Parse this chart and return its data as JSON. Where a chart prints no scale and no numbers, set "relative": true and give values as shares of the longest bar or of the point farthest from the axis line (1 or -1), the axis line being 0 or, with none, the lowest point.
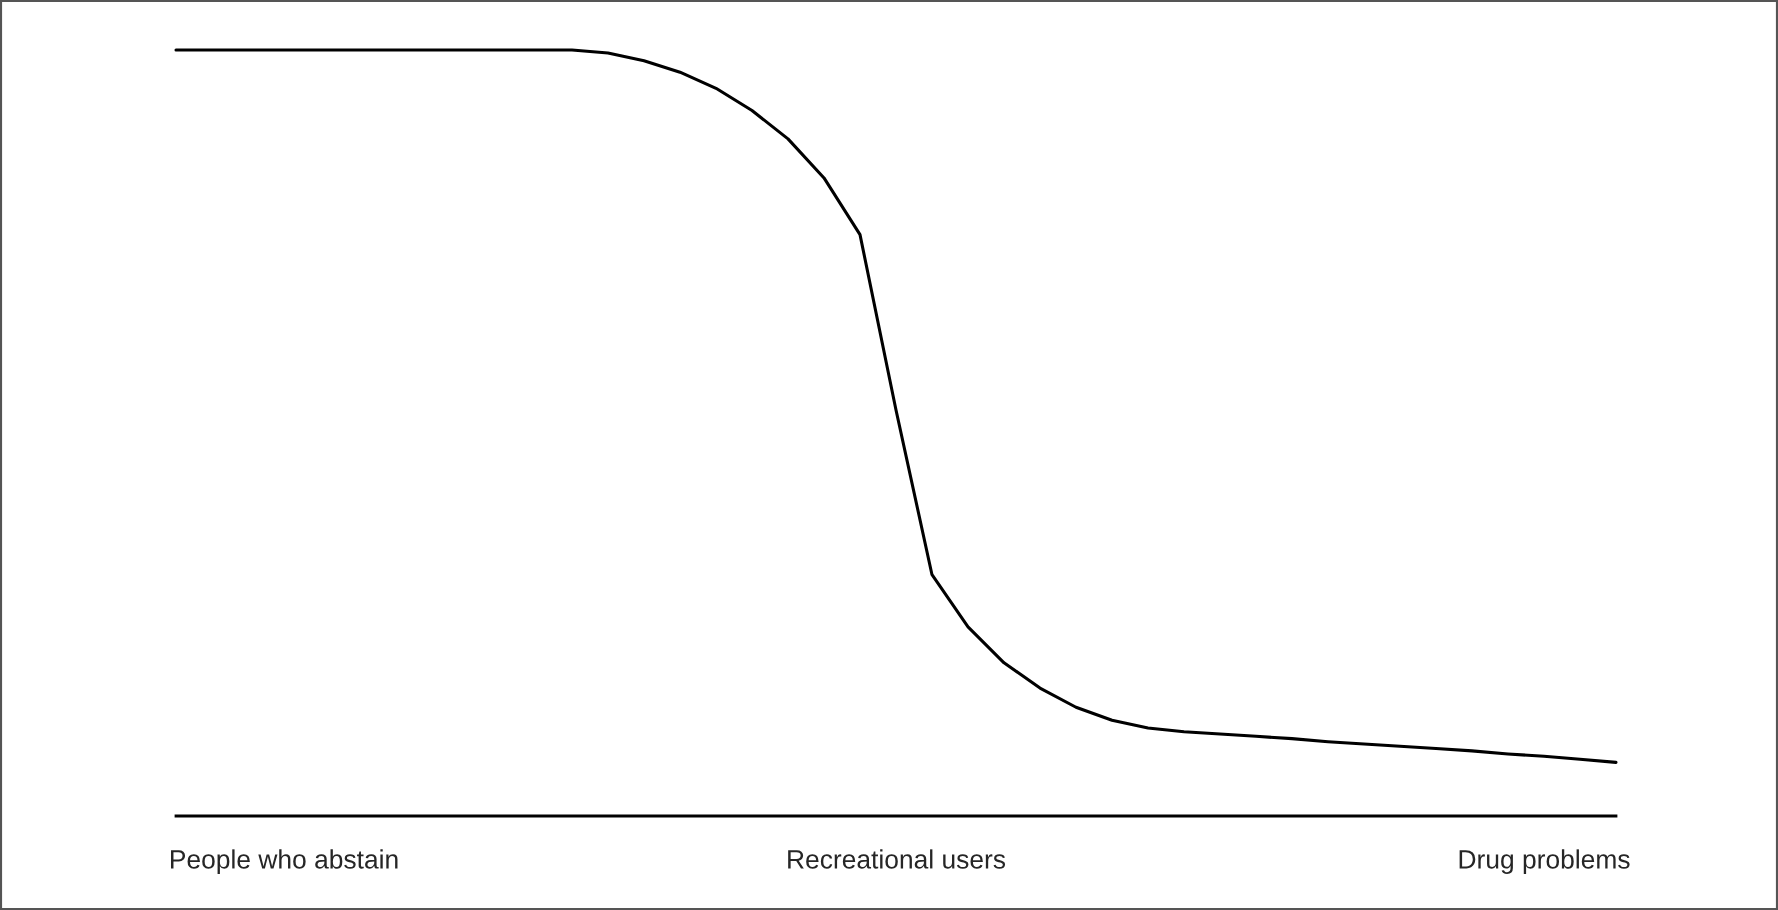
{
  "chart_data": {
    "type": "line",
    "relative": true,
    "categories": [
      null,
      null,
      null,
      "People who abstain",
      null,
      null,
      null,
      null,
      null,
      null,
      null,
      null,
      null,
      null,
      null,
      null,
      null,
      null,
      null,
      null,
      "Recreational users",
      null,
      null,
      null,
      null,
      null,
      null,
      null,
      null,
      null,
      null,
      null,
      null,
      null,
      null,
      null,
      null,
      null,
      "Drug problems",
      null,
      null
    ],
    "series": [
      {
        "color": "#000000",
        "values": [
          1,
          1,
          1,
          1,
          1,
          1,
          1,
          1,
          1,
          1,
          1,
          1,
          0.996,
          0.986,
          0.971,
          0.95,
          0.921,
          0.884,
          0.833,
          0.759,
          0.53,
          0.315,
          0.247,
          0.2,
          0.167,
          0.142,
          0.125,
          0.115,
          0.11,
          0.107,
          0.104,
          0.101,
          0.097,
          0.094,
          0.091,
          0.088,
          0.085,
          0.081,
          0.078,
          0.074,
          0.07
        ]
      }
    ],
    "grid": false,
    "marker": "none",
    "line_style": "solid"
  }
}
